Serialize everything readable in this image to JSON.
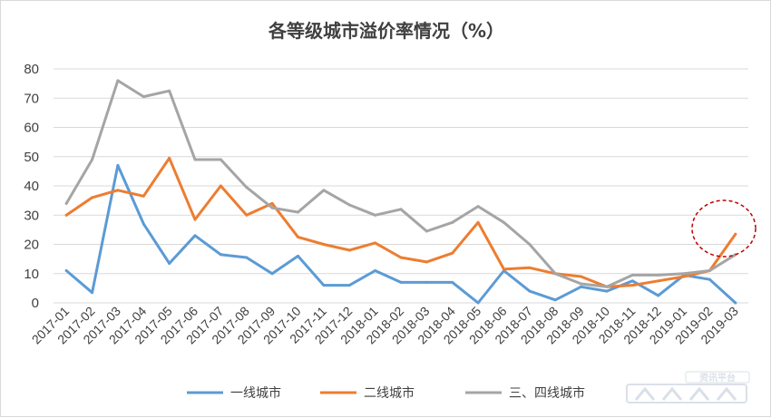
{
  "chart_data": {
    "type": "line",
    "title": "各等级城市溢价率情况（%）",
    "xlabel": "",
    "ylabel": "",
    "ylim": [
      0,
      80
    ],
    "yticks": [
      0,
      10,
      20,
      30,
      40,
      50,
      60,
      70,
      80
    ],
    "grid": true,
    "legend_position": "bottom",
    "categories": [
      "2017-01",
      "2017-02",
      "2017-03",
      "2017-04",
      "2017-05",
      "2017-06",
      "2017-07",
      "2017-08",
      "2017-09",
      "2017-10",
      "2017-11",
      "2017-12",
      "2018-01",
      "2018-02",
      "2018-03",
      "2018-04",
      "2018-05",
      "2018-06",
      "2018-07",
      "2018-08",
      "2018-09",
      "2018-10",
      "2018-11",
      "2018-12",
      "2019-01",
      "2019-02",
      "2019-03"
    ],
    "series": [
      {
        "name": "一线城市",
        "color": "#5b9bd5",
        "values": [
          11,
          3.5,
          47,
          27,
          13.5,
          23,
          16.5,
          15.5,
          10,
          16,
          6,
          6,
          11,
          7,
          7,
          7,
          0,
          11,
          4,
          1,
          5.5,
          4,
          7.5,
          2.5,
          9.5,
          8,
          0
        ]
      },
      {
        "name": "二线城市",
        "color": "#ed7d31",
        "values": [
          30,
          36,
          38.5,
          36.5,
          49.5,
          28.5,
          40,
          30,
          34,
          22.5,
          20,
          18,
          20.5,
          15.5,
          14,
          17,
          27.5,
          11.5,
          12,
          10,
          9,
          5.5,
          6,
          7.5,
          9,
          11,
          23.5
        ]
      },
      {
        "name": "三、四线城市",
        "color": "#a5a5a5",
        "values": [
          34,
          49,
          76,
          70.5,
          72.5,
          49,
          49,
          39.5,
          32.5,
          31,
          38.5,
          33.5,
          30,
          32,
          24.5,
          27.5,
          33,
          27.5,
          20,
          10,
          6.5,
          5.5,
          9.5,
          9.5,
          10,
          11,
          16.5
        ]
      }
    ]
  },
  "watermark": {
    "text": "资讯平台"
  },
  "colors": {
    "highlight_circle": "#c00000",
    "grid": "#d9d9d9",
    "watermark": "#d6dde6"
  }
}
